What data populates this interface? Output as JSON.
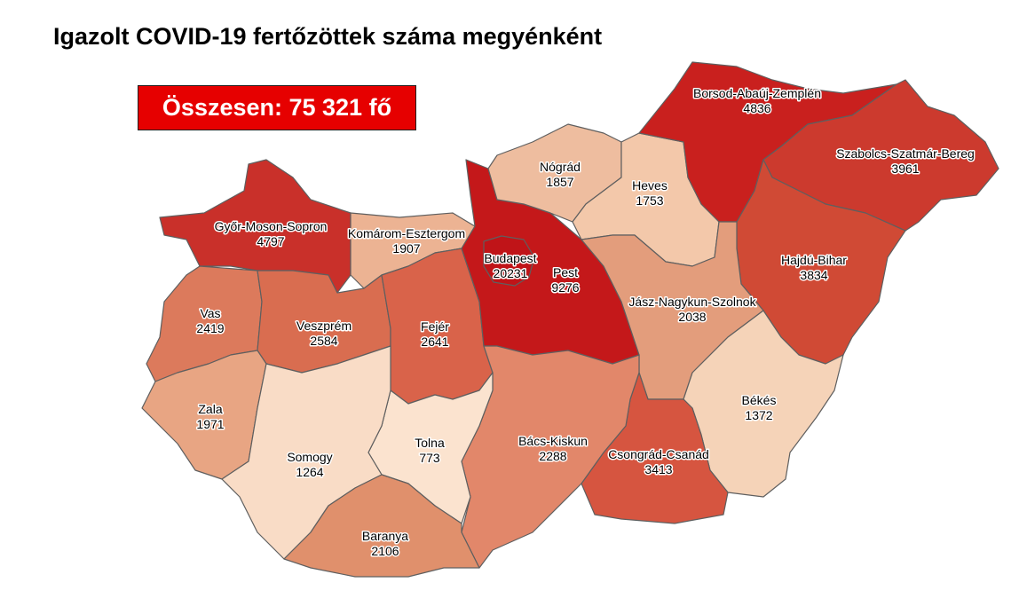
{
  "title": "Igazolt COVID-19 fertőzöttek száma megyénként",
  "total_label": "Összesen: 75 321 fő",
  "counties": [
    {
      "id": "gyor",
      "name": "Győr-Moson-Sopron",
      "value": "4797",
      "color": "#c9302a"
    },
    {
      "id": "komarom",
      "name": "Komárom-Esztergom",
      "value": "1907",
      "color": "#ecb393"
    },
    {
      "id": "vas",
      "name": "Vas",
      "value": "2419",
      "color": "#dc7a5c"
    },
    {
      "id": "veszprem",
      "name": "Veszprém",
      "value": "2584",
      "color": "#d96d50"
    },
    {
      "id": "fejer",
      "name": "Fejér",
      "value": "2641",
      "color": "#d9634a"
    },
    {
      "id": "pest",
      "name": "Pest",
      "value": "9276",
      "color": "#c4181a"
    },
    {
      "id": "budapest",
      "name": "Budapest",
      "value": "20231",
      "color": "#c01418"
    },
    {
      "id": "nograd",
      "name": "Nógrád",
      "value": "1857",
      "color": "#eebd9f"
    },
    {
      "id": "heves",
      "name": "Heves",
      "value": "1753",
      "color": "#f3c8aa"
    },
    {
      "id": "borsod",
      "name": "Borsod-Abaúj-Zemplén",
      "value": "4836",
      "color": "#c9201e"
    },
    {
      "id": "szabolcs",
      "name": "Szabolcs-Szatmár-Bereg",
      "value": "3961",
      "color": "#cc3a2e"
    },
    {
      "id": "hajdu",
      "name": "Hajdú-Bihar",
      "value": "3834",
      "color": "#d04a35"
    },
    {
      "id": "jasz",
      "name": "Jász-Nagykun-Szolnok",
      "value": "2038",
      "color": "#e39d7c"
    },
    {
      "id": "bekes",
      "name": "Békés",
      "value": "1372",
      "color": "#f5d3b8"
    },
    {
      "id": "csongrad",
      "name": "Csongrád-Csanád",
      "value": "3413",
      "color": "#d65540"
    },
    {
      "id": "bacs",
      "name": "Bács-Kiskun",
      "value": "2288",
      "color": "#e2876a"
    },
    {
      "id": "tolna",
      "name": "Tolna",
      "value": "773",
      "color": "#fbe3cf"
    },
    {
      "id": "zala",
      "name": "Zala",
      "value": "1971",
      "color": "#e8a583"
    },
    {
      "id": "somogy",
      "name": "Somogy",
      "value": "1264",
      "color": "#f9dcc6"
    },
    {
      "id": "baranya",
      "name": "Baranya",
      "value": "2106",
      "color": "#e0906c"
    }
  ]
}
